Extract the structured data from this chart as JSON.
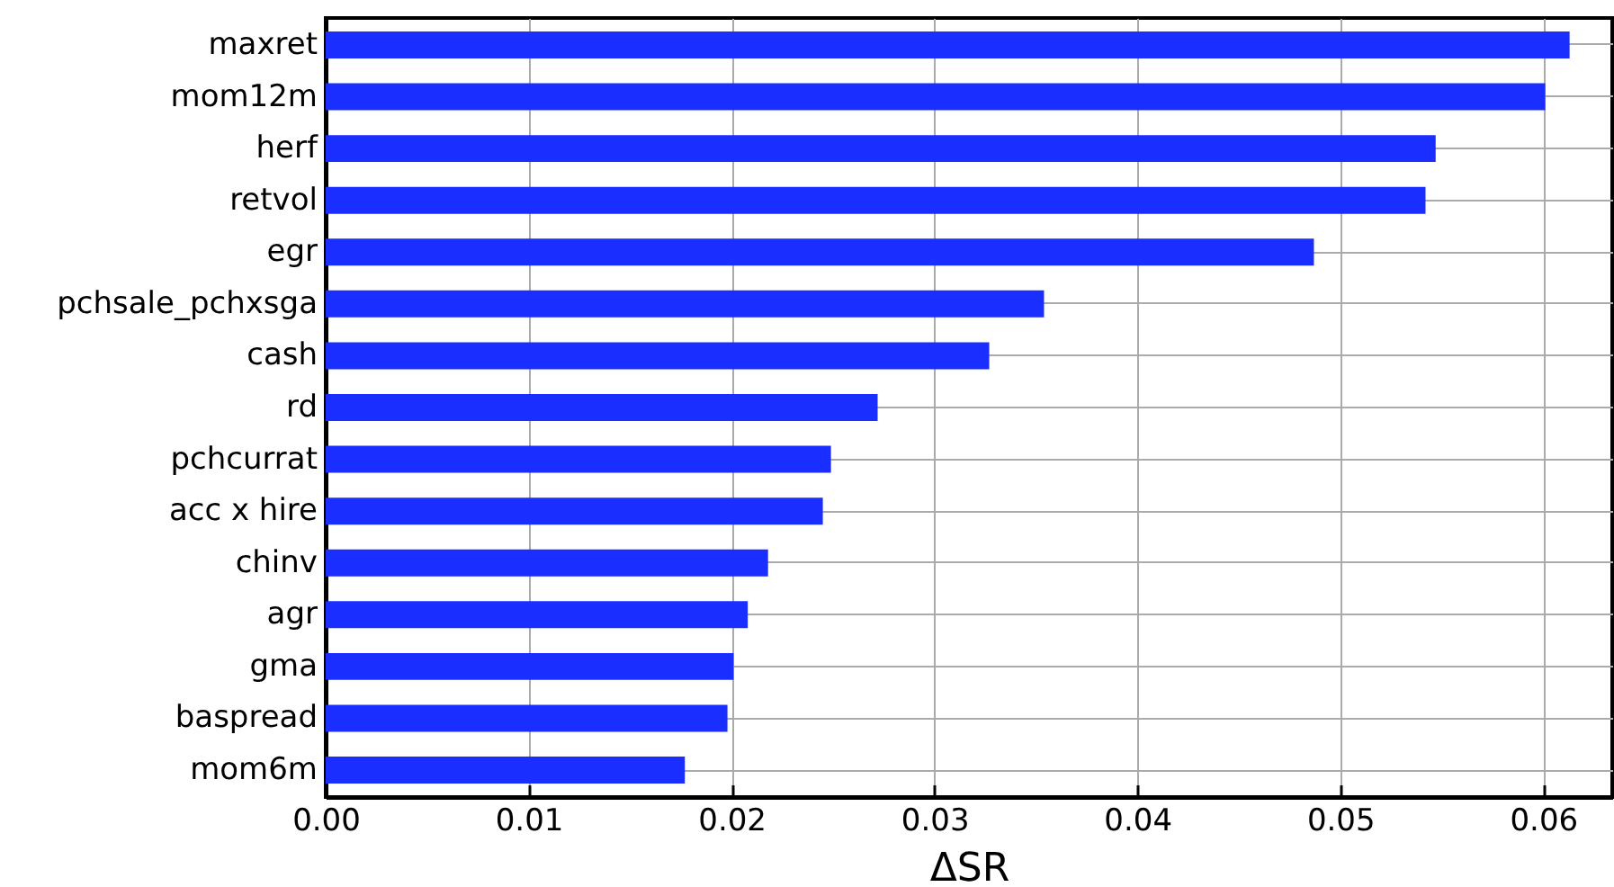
{
  "chart_data": {
    "type": "bar",
    "orientation": "horizontal",
    "xlabel": "ΔSR",
    "categories": [
      "maxret",
      "mom12m",
      "herf",
      "retvol",
      "egr",
      "pchsale_pchxsga",
      "cash",
      "rd",
      "pchcurrat",
      "acc x hire",
      "chinv",
      "agr",
      "gma",
      "baspread",
      "mom6m"
    ],
    "values": [
      0.0613,
      0.0601,
      0.0547,
      0.0542,
      0.0487,
      0.0354,
      0.0327,
      0.0272,
      0.0249,
      0.0245,
      0.0218,
      0.0208,
      0.0201,
      0.0198,
      0.0177
    ],
    "color": "#1a2eff",
    "xlim": [
      0,
      0.0634
    ],
    "xticks": [
      {
        "value": 0,
        "label": "0.00"
      },
      {
        "value": 0.01,
        "label": "0.01"
      },
      {
        "value": 0.02,
        "label": "0.02"
      },
      {
        "value": 0.03,
        "label": "0.03"
      },
      {
        "value": 0.04,
        "label": "0.04"
      },
      {
        "value": 0.05,
        "label": "0.05"
      },
      {
        "value": 0.06,
        "label": "0.06"
      }
    ],
    "grid": true
  }
}
